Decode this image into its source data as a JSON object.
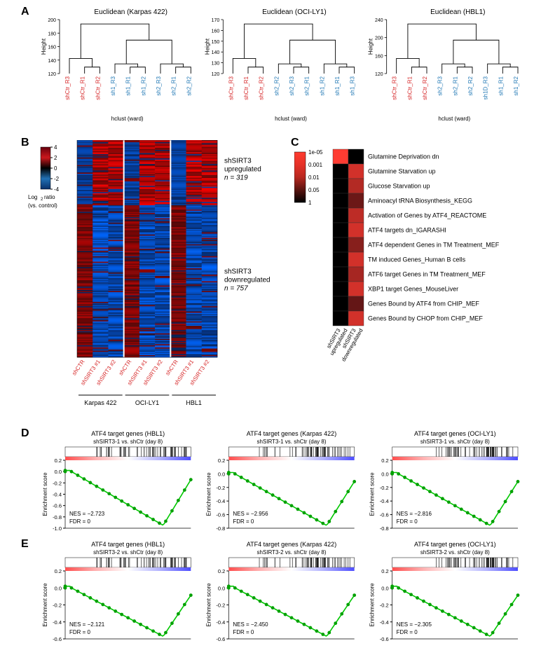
{
  "panelA": {
    "label": "A",
    "dendrograms": [
      {
        "title": "Euclidean (Karpas 422)",
        "xlabel": "hclust (ward)",
        "ylabel": "Height",
        "yticks": [
          120,
          140,
          160,
          180,
          200
        ],
        "leaves": [
          {
            "label": "shCtr_R3",
            "color": "#d62728"
          },
          {
            "label": "shCtr_R1",
            "color": "#d62728"
          },
          {
            "label": "shCtr_R2",
            "color": "#d62728"
          },
          {
            "label": "sh1_R3",
            "color": "#1f77b4"
          },
          {
            "label": "sh1_R1",
            "color": "#1f77b4"
          },
          {
            "label": "sh1_R2",
            "color": "#1f77b4"
          },
          {
            "label": "sh2_R3",
            "color": "#1f77b4"
          },
          {
            "label": "sh2_R1",
            "color": "#1f77b4"
          },
          {
            "label": "sh2_R2",
            "color": "#1f77b4"
          }
        ],
        "links": [
          [
            0,
            1,
            2,
            130
          ],
          [
            3,
            1,
            2,
            125
          ],
          [
            4,
            3,
            0,
            160
          ],
          [
            5,
            4,
            5,
            125
          ],
          [
            6,
            3,
            4,
            135
          ],
          [
            7,
            6,
            5,
            150
          ],
          [
            8,
            6,
            7,
            130
          ],
          [
            9,
            7,
            8,
            140
          ],
          [
            10,
            9,
            8,
            165
          ],
          [
            11,
            4,
            10,
            195
          ]
        ],
        "label_fontsize": 8,
        "title_fontsize": 10,
        "line_color": "#000000"
      },
      {
        "title": "Euclidean (OCI-LY1)",
        "xlabel": "hclust (ward)",
        "ylabel": "Height",
        "yticks": [
          120,
          130,
          140,
          150,
          160,
          170
        ],
        "leaves": [
          {
            "label": "shCtr_R3",
            "color": "#d62728"
          },
          {
            "label": "shCtr_R1",
            "color": "#d62728"
          },
          {
            "label": "shCtr_R2",
            "color": "#d62728"
          },
          {
            "label": "sh2_R2",
            "color": "#1f77b4"
          },
          {
            "label": "sh2_R3",
            "color": "#1f77b4"
          },
          {
            "label": "sh2_R1",
            "color": "#1f77b4"
          },
          {
            "label": "sh1_R2",
            "color": "#1f77b4"
          },
          {
            "label": "sh1_R1",
            "color": "#1f77b4"
          },
          {
            "label": "sh1_R3",
            "color": "#1f77b4"
          }
        ],
        "links": [],
        "label_fontsize": 8,
        "title_fontsize": 10,
        "line_color": "#000000"
      },
      {
        "title": "Euclidean (HBL1)",
        "xlabel": "hclust (ward)",
        "ylabel": "Height",
        "yticks": [
          120,
          160,
          200,
          240
        ],
        "leaves": [
          {
            "label": "shCtr_R3",
            "color": "#d62728"
          },
          {
            "label": "shCtr_R1",
            "color": "#d62728"
          },
          {
            "label": "shCtr_R2",
            "color": "#d62728"
          },
          {
            "label": "sh2_R3",
            "color": "#1f77b4"
          },
          {
            "label": "sh2_R1",
            "color": "#1f77b4"
          },
          {
            "label": "sh2_R2",
            "color": "#1f77b4"
          },
          {
            "label": "sh1D_R3",
            "color": "#1f77b4"
          },
          {
            "label": "sh1_R1",
            "color": "#1f77b4"
          },
          {
            "label": "sh1_R2",
            "color": "#1f77b4"
          }
        ],
        "links": [],
        "label_fontsize": 8,
        "title_fontsize": 10,
        "line_color": "#000000"
      }
    ]
  },
  "panelB": {
    "label": "B",
    "legend_title": "Log₂ ratio\n(vs. control)",
    "legend_ticks": [
      -4,
      -2,
      0,
      2,
      4
    ],
    "legend_colors": [
      "#08306b",
      "#2171b5",
      "#000000",
      "#cb181d",
      "#67000d"
    ],
    "columns": [
      "shCTR",
      "shSIRT3 #1",
      "shSIRT3 #2",
      "shCTR",
      "shSIRT3 #1",
      "shSIRT3 #2",
      "shCTR",
      "shSIRT3 #1",
      "shSIRT3 #2"
    ],
    "groups": [
      "Karpas 422",
      "OCI-LY1",
      "HBL1"
    ],
    "annotations": [
      {
        "label": "shSIRT3\nupregulated",
        "n": "n = 319"
      },
      {
        "label": "shSIRT3\ndownregulated",
        "n": "n = 757"
      }
    ],
    "rows_up": 60,
    "rows_down": 140,
    "col_label_fontsize": 8,
    "annot_fontsize": 10
  },
  "panelC": {
    "label": "C",
    "legend_ticks": [
      "1e-05",
      "0.001",
      "0.01",
      "0.05",
      "1"
    ],
    "legend_colors": [
      "#ff3b2f",
      "#e63228",
      "#b82820",
      "#5a1410",
      "#000000"
    ],
    "columns": [
      "shSIRT3\nupregulated",
      "shSIRT3\ndownregulated"
    ],
    "rows": [
      {
        "label": "Glutamine Deprivation dn",
        "vals": [
          1e-05,
          1
        ]
      },
      {
        "label": "Glutamine Starvation up",
        "vals": [
          1,
          0.0001
        ]
      },
      {
        "label": "Glucose Starvation up",
        "vals": [
          1,
          0.0005
        ]
      },
      {
        "label": "Aminoacyl tRNA Biosynthesis_KEGG",
        "vals": [
          1,
          0.02
        ]
      },
      {
        "label": "Activation of Genes by ATF4_REACTOME",
        "vals": [
          1,
          0.0003
        ]
      },
      {
        "label": "ATF4 targets dn_IGARASHI",
        "vals": [
          1,
          0.0001
        ]
      },
      {
        "label": "ATF4 dependent Genes in TM Treatment_MEF",
        "vals": [
          1,
          0.005
        ]
      },
      {
        "label": "TM induced Genes_Human B cells",
        "vals": [
          1,
          0.0001
        ]
      },
      {
        "label": "ATF6 target Genes in TM Treatment_MEF",
        "vals": [
          1,
          0.001
        ]
      },
      {
        "label": "XBP1 target Genes_MouseLiver",
        "vals": [
          1,
          0.0001
        ]
      },
      {
        "label": "Genes Bound by ATF4 from CHIP_MEF",
        "vals": [
          1,
          0.03
        ]
      },
      {
        "label": "Genes Bound by CHOP from CHIP_MEF",
        "vals": [
          1,
          0.0001
        ]
      }
    ],
    "label_fontsize": 9,
    "col_fontsize": 8
  },
  "panelD": {
    "label": "D",
    "plots": [
      {
        "title": "ATF4 target genes (HBL1)",
        "subtitle": "shSIRT3-1 vs. shCtr (day 8)",
        "nes": "NES = −2.723",
        "fdr": "FDR = 0",
        "ymin": -1.0,
        "ymax": 0.2
      },
      {
        "title": "ATF4 target genes (Karpas 422)",
        "subtitle": "shSIRT3-1 vs. shCtr (day 8)",
        "nes": "NES = −2.956",
        "fdr": "FDR = 0",
        "ymin": -0.8,
        "ymax": 0.2
      },
      {
        "title": "ATF4 target genes (OCI-LY1)",
        "subtitle": "shSIRT3-1 vs. shCtr (day 8)",
        "nes": "NES = −2.816",
        "fdr": "FDR = 0",
        "ymin": -0.8,
        "ymax": 0.2
      }
    ],
    "ylabel": "Enrichment score",
    "line_color": "#00c800",
    "marker_color": "#00a000",
    "heatbar_colors": [
      "#ff4d4d",
      "#ffb3b3",
      "#ffffff",
      "#b3b3ff",
      "#4d4dff"
    ],
    "label_fontsize": 8,
    "title_fontsize": 9
  },
  "panelE": {
    "label": "E",
    "plots": [
      {
        "title": "ATF4 target genes (HBL1)",
        "subtitle": "shSIRT3-2 vs. shCtr (day 8)",
        "nes": "NES = −2.121",
        "fdr": "FDR = 0",
        "ymin": -0.6,
        "ymax": 0.2
      },
      {
        "title": "ATF4 target genes (Karpas 422)",
        "subtitle": "shSIRT3-2 vs. shCtr (day 8)",
        "nes": "NES = −2.450",
        "fdr": "FDR = 0",
        "ymin": -0.6,
        "ymax": 0.2
      },
      {
        "title": "ATF4 target genes (OCI-LY1)",
        "subtitle": "shSIRT3-2 vs. shCtr (day 8)",
        "nes": "NES = −2.305",
        "fdr": "FDR = 0",
        "ymin": -0.6,
        "ymax": 0.2
      }
    ],
    "ylabel": "Enrichment score",
    "line_color": "#00c800",
    "marker_color": "#00a000",
    "heatbar_colors": [
      "#ff4d4d",
      "#ffb3b3",
      "#ffffff",
      "#b3b3ff",
      "#4d4dff"
    ],
    "label_fontsize": 8,
    "title_fontsize": 9
  }
}
